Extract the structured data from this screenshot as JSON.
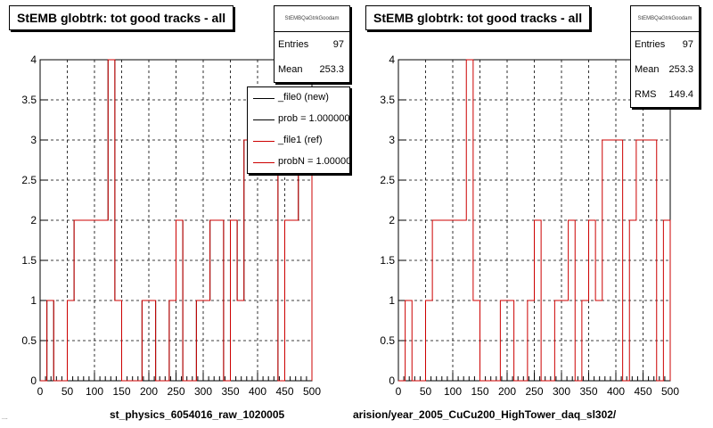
{
  "chart_data": [
    {
      "type": "bar",
      "title": "StEMB globtrk: tot good tracks - all",
      "stats_name": "StEMBQaGtrkGoodam",
      "stats": {
        "entries_label": "Entries",
        "entries": "97",
        "mean_label": "Mean",
        "mean": "253.3"
      },
      "legend": [
        {
          "label": "_file0 (new)",
          "color": "#000000"
        },
        {
          "label": "prob = 1.000000",
          "color": "#000000"
        },
        {
          "label": "_file1 (ref)",
          "color": "#cc0000"
        },
        {
          "label": "probN = 1.000000",
          "color": "#cc0000"
        }
      ],
      "xlabel": "st_physics_6054016_raw_1020005",
      "xlim": [
        0,
        500
      ],
      "ylim": [
        0,
        4
      ],
      "grid": true,
      "x_ticks": [
        "0",
        "50",
        "100",
        "150",
        "200",
        "250",
        "300",
        "350",
        "400",
        "450",
        "500"
      ],
      "y_ticks": [
        "0",
        "0.5",
        "1",
        "1.5",
        "2",
        "2.5",
        "3",
        "3.5",
        "4"
      ],
      "bin_width": 12.5,
      "series": [
        {
          "name": "_file0 (new)",
          "color": "#000000",
          "values": [
            0,
            1,
            0,
            0,
            1,
            2,
            2,
            2,
            2,
            2,
            4,
            1,
            0,
            0,
            0,
            1,
            1,
            0,
            0,
            1,
            2,
            0,
            0,
            1,
            1,
            2,
            2,
            0,
            2,
            1,
            3,
            3,
            3,
            3,
            3,
            0,
            2,
            2,
            3,
            3
          ]
        },
        {
          "name": "_file1 (ref)",
          "color": "#cc0000",
          "values": [
            0,
            1,
            0,
            0,
            1,
            2,
            2,
            2,
            2,
            2,
            4,
            1,
            0,
            0,
            0,
            1,
            1,
            0,
            0,
            1,
            2,
            0,
            0,
            1,
            1,
            2,
            2,
            0,
            2,
            1,
            3,
            3,
            3,
            3,
            3,
            0,
            2,
            2,
            3,
            3
          ]
        }
      ]
    },
    {
      "type": "bar",
      "title": "StEMB globtrk: tot good tracks - all",
      "stats_name": "StEMBQaGtrkGoodam",
      "stats": {
        "entries_label": "Entries",
        "entries": "97",
        "mean_label": "Mean",
        "mean": "253.3",
        "rms_label": "RMS",
        "rms": "149.4"
      },
      "xlabel": "arision/year_2005_CuCu200_HighTower_daq_sl302/",
      "xlim": [
        0,
        500
      ],
      "ylim": [
        0,
        4
      ],
      "grid": true,
      "x_ticks": [
        "0",
        "50",
        "100",
        "150",
        "200",
        "250",
        "300",
        "350",
        "400",
        "450",
        "500"
      ],
      "y_ticks": [
        "0",
        "0.5",
        "1",
        "1.5",
        "2",
        "2.5",
        "3",
        "3.5",
        "4"
      ],
      "bin_width": 12.5,
      "series": [
        {
          "name": "",
          "color": "#cc0000",
          "values": [
            0,
            1,
            0,
            0,
            1,
            2,
            2,
            2,
            2,
            2,
            4,
            1,
            0,
            0,
            0,
            1,
            1,
            0,
            0,
            1,
            2,
            0,
            0,
            1,
            1,
            2,
            0,
            1,
            2,
            1,
            3,
            3,
            3,
            0,
            2,
            3,
            3,
            3,
            0,
            2
          ]
        }
      ]
    }
  ],
  "footer_tiny": "...."
}
